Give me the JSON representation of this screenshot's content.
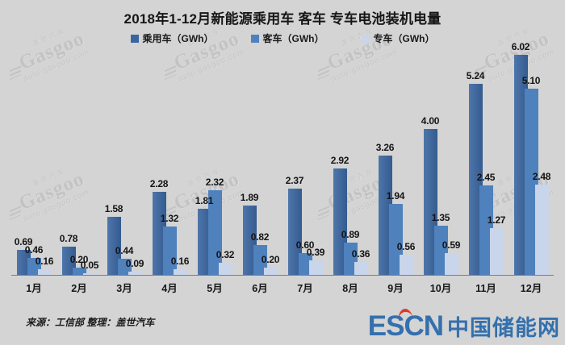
{
  "title": "2018年1-12月新能源乘用车 客车 专车电池装机电量",
  "chart_data": {
    "type": "bar",
    "title": "2018年1-12月新能源乘用车 客车 专车电池装机电量",
    "categories": [
      "1月",
      "2月",
      "3月",
      "4月",
      "5月",
      "6月",
      "7月",
      "8月",
      "9月",
      "10月",
      "11月",
      "12月"
    ],
    "series": [
      {
        "name": "乘用车（GWh）",
        "color": "#3a66a0",
        "values": [
          0.69,
          0.78,
          1.58,
          2.28,
          1.81,
          1.89,
          2.37,
          2.92,
          3.26,
          4.0,
          5.24,
          6.02
        ],
        "labels": [
          "0.69",
          "0.78",
          "1.58",
          "2.28",
          "1.81",
          "1.89",
          "2.37",
          "2.92",
          "3.26",
          "4.00",
          "5.24",
          "6.02"
        ]
      },
      {
        "name": "客车（GWh）",
        "color": "#4f81bd",
        "values": [
          0.46,
          0.2,
          0.44,
          1.32,
          2.32,
          0.82,
          0.6,
          0.89,
          1.94,
          1.35,
          2.45,
          5.1
        ],
        "labels": [
          "0.46",
          "0.20",
          "0.44",
          "1.32",
          "2.32",
          "0.82",
          "0.60",
          "0.89",
          "1.94",
          "1.35",
          "2.45",
          "5.10"
        ]
      },
      {
        "name": "专车（GWh）",
        "color": "#c9d5ea",
        "values": [
          0.16,
          0.05,
          0.09,
          0.16,
          0.32,
          0.2,
          0.39,
          0.36,
          0.56,
          0.59,
          1.27,
          2.48
        ],
        "labels": [
          "0.16",
          "0.05",
          "0.09",
          "0.16",
          "0.32",
          "0.20",
          "0.39",
          "0.36",
          "0.56",
          "0.59",
          "1.27",
          "2.48"
        ]
      }
    ],
    "xlabel": "",
    "ylabel": "",
    "ylim": [
      0,
      6.2
    ],
    "grid": false,
    "y_axis_visible": false,
    "legend_position": "top",
    "value_labels": true
  },
  "legend": [
    {
      "label": "乘用车（GWh）",
      "color": "#3a66a0"
    },
    {
      "label": "客车（GWh）",
      "color": "#4f81bd"
    },
    {
      "label": "专车（GWh）",
      "color": "#c9d5ea"
    }
  ],
  "watermark": {
    "cn": "盖世汽车",
    "brand": "Gasgoo",
    "url": "auto.gasgoo.com"
  },
  "footer": {
    "source": "来源：工信部 整理：盖世汽车",
    "logo_text": "ESCN",
    "logo_suffix": "中国储能网",
    "logo_color": "#3470ad",
    "logo_accent": "#d93a2b"
  }
}
